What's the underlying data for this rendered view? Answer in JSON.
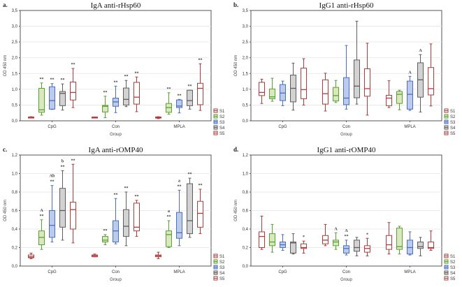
{
  "colors": {
    "S1": {
      "stroke": "#b23a3a",
      "fill": "#ffffff"
    },
    "S2": {
      "stroke": "#5aa032",
      "fill": "#d9e8bd"
    },
    "S3": {
      "stroke": "#4a6ec2",
      "fill": "#bccbea"
    },
    "S4": {
      "stroke": "#5e5e5e",
      "fill": "#d2d2d2"
    },
    "S5": {
      "stroke": "#b23a3a",
      "fill": "#ffffff"
    }
  },
  "chart_data": [
    {
      "type": "box",
      "panel_label": "a.",
      "title": "IgA anti-rHsp60",
      "xlabel": "Group",
      "ylabel": "OD 450 nm",
      "ylim": [
        0,
        3.5
      ],
      "yticks": [
        "0,0",
        "0,5",
        "1,0",
        "1,5",
        "2,0",
        "2,5",
        "3,0",
        "3,5"
      ],
      "series": [
        "S1",
        "S2",
        "S3",
        "S4",
        "S5"
      ],
      "groups": [
        {
          "name": "CpG",
          "boxes": [
            {
              "s": "S1",
              "v": [
                0.09,
                0.1,
                0.11,
                0.12,
                0.13
              ],
              "ann": []
            },
            {
              "s": "S2",
              "v": [
                0.18,
                0.27,
                0.35,
                1.03,
                1.2
              ],
              "ann": [
                "**"
              ]
            },
            {
              "s": "S3",
              "v": [
                0.36,
                0.37,
                0.64,
                1.08,
                1.18
              ],
              "ann": [
                "**"
              ]
            },
            {
              "s": "S4",
              "v": [
                0.34,
                0.48,
                0.87,
                0.93,
                1.17
              ],
              "ann": [
                "**"
              ]
            },
            {
              "s": "S5",
              "v": [
                0.42,
                0.66,
                0.9,
                1.23,
                1.66
              ],
              "ann": [
                "**"
              ]
            }
          ]
        },
        {
          "name": "Con",
          "boxes": [
            {
              "s": "S1",
              "v": [
                0.09,
                0.1,
                0.11,
                0.12,
                0.12
              ],
              "ann": []
            },
            {
              "s": "S2",
              "v": [
                0.1,
                0.28,
                0.46,
                0.49,
                0.78
              ],
              "ann": [
                "**"
              ]
            },
            {
              "s": "S3",
              "v": [
                0.26,
                0.46,
                0.6,
                0.72,
                1.1
              ],
              "ann": [
                "**"
              ]
            },
            {
              "s": "S4",
              "v": [
                0.45,
                0.5,
                0.68,
                1.04,
                1.28
              ],
              "ann": [
                "**"
              ]
            },
            {
              "s": "S5",
              "v": [
                0.29,
                0.53,
                0.75,
                1.22,
                1.39
              ],
              "ann": [
                "**"
              ]
            }
          ]
        },
        {
          "name": "MPLA",
          "boxes": [
            {
              "s": "S1",
              "v": [
                0.07,
                0.09,
                0.1,
                0.12,
                0.13
              ],
              "ann": []
            },
            {
              "s": "S2",
              "v": [
                0.21,
                0.27,
                0.42,
                0.55,
                0.89
              ],
              "ann": [
                "**"
              ]
            },
            {
              "s": "S3",
              "v": [
                0.25,
                0.42,
                0.47,
                0.66,
                0.68
              ],
              "ann": [
                "**"
              ]
            },
            {
              "s": "S4",
              "v": [
                0.37,
                0.48,
                0.64,
                0.97,
                0.97
              ],
              "ann": [
                "**"
              ]
            },
            {
              "s": "S5",
              "v": [
                0.33,
                0.51,
                1.03,
                1.19,
                1.81
              ],
              "ann": [
                "**"
              ]
            }
          ]
        }
      ]
    },
    {
      "type": "box",
      "panel_label": "b.",
      "title": "IgG1 anti-rHsp60",
      "xlabel": "Group",
      "ylabel": "OD 450 nm",
      "ylim": [
        0,
        3.5
      ],
      "yticks": [
        "0,0",
        "0,5",
        "1,0",
        "1,5",
        "2,0",
        "2,5",
        "3,0",
        "3,5"
      ],
      "series": [
        "S1",
        "S2",
        "S3",
        "S4",
        "S5"
      ],
      "groups": [
        {
          "name": "CpG",
          "boxes": [
            {
              "s": "S1",
              "v": [
                0.55,
                0.8,
                0.9,
                1.22,
                1.32
              ],
              "ann": []
            },
            {
              "s": "S2",
              "v": [
                0.62,
                0.7,
                0.76,
                1.01,
                1.35
              ],
              "ann": []
            },
            {
              "s": "S3",
              "v": [
                0.48,
                0.64,
                0.88,
                1.15,
                1.26
              ],
              "ann": []
            },
            {
              "s": "S4",
              "v": [
                0.34,
                0.6,
                1.03,
                1.45,
                1.83
              ],
              "ann": []
            },
            {
              "s": "S5",
              "v": [
                0.5,
                0.7,
                0.99,
                1.67,
                1.97
              ],
              "ann": []
            }
          ]
        },
        {
          "name": "Con",
          "boxes": [
            {
              "s": "S1",
              "v": [
                0.31,
                0.53,
                0.86,
                1.3,
                1.51
              ],
              "ann": []
            },
            {
              "s": "S2",
              "v": [
                0.58,
                0.63,
                0.8,
                1.06,
                1.28
              ],
              "ann": []
            },
            {
              "s": "S3",
              "v": [
                0.37,
                0.51,
                0.72,
                1.37,
                2.39
              ],
              "ann": []
            },
            {
              "s": "S4",
              "v": [
                0.53,
                0.73,
                1.1,
                1.93,
                3.16
              ],
              "ann": []
            },
            {
              "s": "S5",
              "v": [
                0.18,
                0.78,
                1.02,
                1.65,
                2.46
              ],
              "ann": []
            }
          ]
        },
        {
          "name": "MPLA",
          "boxes": [
            {
              "s": "S1",
              "v": [
                0.42,
                0.48,
                0.72,
                0.81,
                1.27
              ],
              "ann": []
            },
            {
              "s": "S2",
              "v": [
                0.35,
                0.55,
                0.84,
                0.93,
                0.97
              ],
              "ann": []
            },
            {
              "s": "S3",
              "v": [
                0.33,
                0.37,
                0.84,
                1.26,
                1.41
              ],
              "ann": [
                "A"
              ]
            },
            {
              "s": "S4",
              "v": [
                0.28,
                0.75,
                1.3,
                1.84,
                2.1
              ],
              "ann": [
                "A"
              ]
            },
            {
              "s": "S5",
              "v": [
                0.47,
                0.82,
                1.02,
                1.69,
                2.44
              ],
              "ann": []
            }
          ]
        }
      ]
    },
    {
      "type": "box",
      "panel_label": "c.",
      "title": "IgA anti-rOMP40",
      "xlabel": "Group",
      "ylabel": "OD 450 nm",
      "ylim": [
        0,
        1.2
      ],
      "yticks": [
        "0,0",
        "0,2",
        "0,4",
        "0,6",
        "0,8",
        "1,0",
        "1,2"
      ],
      "series": [
        "S1",
        "S2",
        "S3",
        "S4",
        "S5"
      ],
      "groups": [
        {
          "name": "CpG",
          "boxes": [
            {
              "s": "S1",
              "v": [
                0.08,
                0.09,
                0.1,
                0.12,
                0.14
              ],
              "ann": []
            },
            {
              "s": "S2",
              "v": [
                0.18,
                0.23,
                0.31,
                0.38,
                0.5
              ],
              "ann": [
                "A",
                "**"
              ]
            },
            {
              "s": "S3",
              "v": [
                0.26,
                0.31,
                0.44,
                0.6,
                0.87
              ],
              "ann": [
                "Ab",
                "**"
              ]
            },
            {
              "s": "S4",
              "v": [
                0.28,
                0.42,
                0.6,
                0.84,
                1.03
              ],
              "ann": [
                "b",
                "**"
              ]
            },
            {
              "s": "S5",
              "v": [
                0.25,
                0.4,
                0.61,
                0.69,
                1.1
              ],
              "ann": [
                "**"
              ]
            }
          ]
        },
        {
          "name": "Con",
          "boxes": [
            {
              "s": "S1",
              "v": [
                0.1,
                0.1,
                0.11,
                0.12,
                0.13
              ],
              "ann": []
            },
            {
              "s": "S2",
              "v": [
                0.23,
                0.26,
                0.28,
                0.32,
                0.34
              ],
              "ann": [
                "**"
              ]
            },
            {
              "s": "S3",
              "v": [
                0.24,
                0.26,
                0.38,
                0.49,
                0.73
              ],
              "ann": [
                "**"
              ]
            },
            {
              "s": "S4",
              "v": [
                0.22,
                0.32,
                0.43,
                0.61,
                0.8
              ],
              "ann": [
                "**"
              ]
            },
            {
              "s": "S5",
              "v": [
                0.32,
                0.38,
                0.42,
                0.68,
                0.71
              ],
              "ann": [
                "**"
              ]
            }
          ]
        },
        {
          "name": "MPLA",
          "boxes": [
            {
              "s": "S1",
              "v": [
                0.08,
                0.1,
                0.11,
                0.12,
                0.15
              ],
              "ann": []
            },
            {
              "s": "S2",
              "v": [
                0.2,
                0.21,
                0.34,
                0.38,
                0.49
              ],
              "ann": [
                "a",
                "**"
              ]
            },
            {
              "s": "S3",
              "v": [
                0.22,
                0.3,
                0.36,
                0.58,
                0.82
              ],
              "ann": [
                "a",
                "**"
              ]
            },
            {
              "s": "S4",
              "v": [
                0.31,
                0.35,
                0.49,
                0.89,
                0.95
              ],
              "ann": [
                "**"
              ]
            },
            {
              "s": "S5",
              "v": [
                0.35,
                0.42,
                0.57,
                0.7,
                0.83
              ],
              "ann": [
                "**"
              ]
            }
          ]
        }
      ]
    },
    {
      "type": "box",
      "panel_label": "d.",
      "title": "IgG1 anti-rOMP40",
      "xlabel": "Group",
      "ylabel": "OD 450 nm",
      "ylim": [
        0,
        1.2
      ],
      "yticks": [
        "0,0",
        "0,2",
        "0,4",
        "0,6",
        "0,8",
        "1,0",
        "1,2"
      ],
      "series": [
        "S1",
        "S2",
        "S3",
        "S4",
        "S5"
      ],
      "groups": [
        {
          "name": "CpG",
          "boxes": [
            {
              "s": "S1",
              "v": [
                0.18,
                0.2,
                0.32,
                0.37,
                0.54
              ],
              "ann": []
            },
            {
              "s": "S2",
              "v": [
                0.15,
                0.22,
                0.26,
                0.35,
                0.45
              ],
              "ann": []
            },
            {
              "s": "S3",
              "v": [
                0.17,
                0.2,
                0.23,
                0.26,
                0.34
              ],
              "ann": []
            },
            {
              "s": "S4",
              "v": [
                0.13,
                0.14,
                0.25,
                0.26,
                0.35
              ],
              "ann": []
            },
            {
              "s": "S5",
              "v": [
                0.14,
                0.19,
                0.2,
                0.24,
                0.27
              ],
              "ann": [
                "*"
              ]
            }
          ]
        },
        {
          "name": "Con",
          "boxes": [
            {
              "s": "S1",
              "v": [
                0.22,
                0.24,
                0.28,
                0.33,
                0.45
              ],
              "ann": []
            },
            {
              "s": "S2",
              "v": [
                0.18,
                0.22,
                0.26,
                0.28,
                0.36
              ],
              "ann": [
                "A"
              ]
            },
            {
              "s": "S3",
              "v": [
                0.12,
                0.14,
                0.19,
                0.22,
                0.28
              ],
              "ann": [
                "A",
                "**"
              ]
            },
            {
              "s": "S4",
              "v": [
                0.11,
                0.16,
                0.2,
                0.28,
                0.31
              ],
              "ann": []
            },
            {
              "s": "S5",
              "v": [
                0.11,
                0.15,
                0.19,
                0.22,
                0.3
              ],
              "ann": [
                "*"
              ]
            }
          ]
        },
        {
          "name": "MPLA",
          "boxes": [
            {
              "s": "S1",
              "v": [
                0.13,
                0.18,
                0.23,
                0.33,
                0.47
              ],
              "ann": []
            },
            {
              "s": "S2",
              "v": [
                0.13,
                0.18,
                0.21,
                0.41,
                0.43
              ],
              "ann": []
            },
            {
              "s": "S3",
              "v": [
                0.12,
                0.13,
                0.2,
                0.28,
                0.37
              ],
              "ann": []
            },
            {
              "s": "S4",
              "v": [
                0.11,
                0.19,
                0.21,
                0.26,
                0.31
              ],
              "ann": []
            },
            {
              "s": "S5",
              "v": [
                0.17,
                0.19,
                0.2,
                0.26,
                0.38
              ],
              "ann": []
            }
          ]
        }
      ]
    }
  ]
}
